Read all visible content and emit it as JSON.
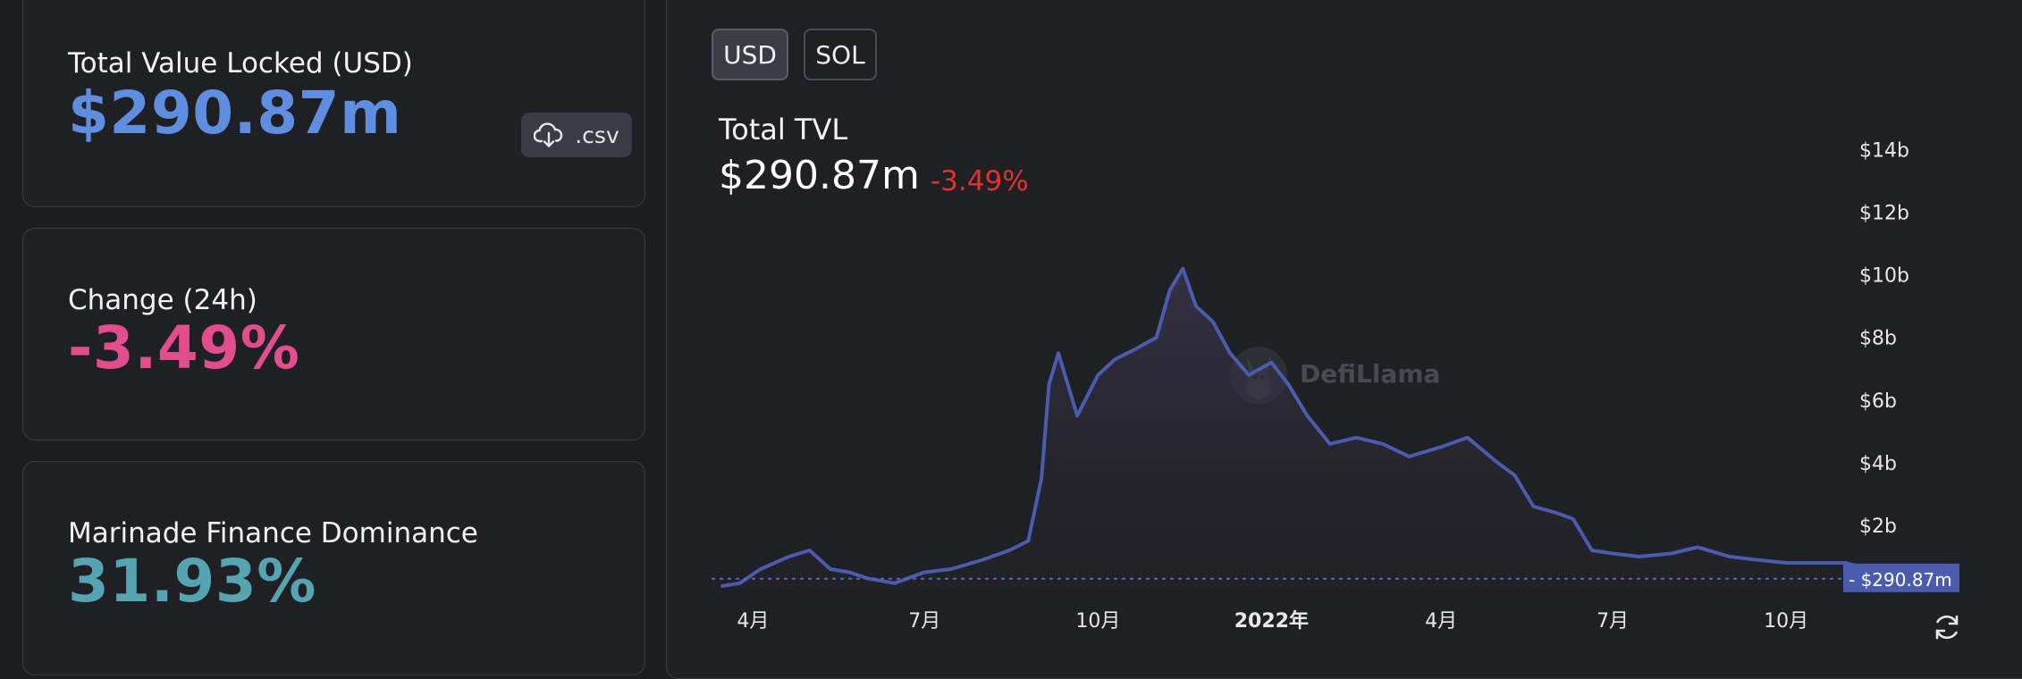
{
  "stats": {
    "tvl": {
      "label": "Total Value Locked (USD)",
      "value": "$290.87m"
    },
    "change": {
      "label": "Change (24h)",
      "value": "-3.49%"
    },
    "dominance": {
      "label": "Marinade Finance Dominance",
      "value": "31.93%"
    },
    "csv_label": ".csv"
  },
  "chart": {
    "toggles": [
      "USD",
      "SOL"
    ],
    "active_toggle": "USD",
    "title": "Total TVL",
    "value": "$290.87m",
    "change": "-3.49%",
    "watermark": "DefiLlama",
    "current_label": "$290.87m"
  },
  "colors": {
    "line": "#4b5cae",
    "tvl_value": "#5f8de0",
    "change_value": "#e24d8d",
    "dominance_value": "#56a3b1",
    "negative": "#e0322f"
  },
  "chart_data": {
    "type": "area",
    "series": [
      {
        "x": [
          "2021-03-15",
          "2021-03-25",
          "2021-04-05",
          "2021-04-20",
          "2021-05-01",
          "2021-05-12",
          "2021-05-22",
          "2021-06-01",
          "2021-06-15",
          "2021-07-01",
          "2021-07-15",
          "2021-08-01",
          "2021-08-15",
          "2021-08-25",
          "2021-09-01",
          "2021-09-05",
          "2021-09-10",
          "2021-09-20",
          "2021-10-01",
          "2021-10-10",
          "2021-10-20",
          "2021-11-01",
          "2021-11-08",
          "2021-11-15",
          "2021-11-22",
          "2021-12-01",
          "2021-12-10",
          "2021-12-20",
          "2022-01-01",
          "2022-01-10",
          "2022-01-20",
          "2022-02-01",
          "2022-02-15",
          "2022-03-01",
          "2022-03-15",
          "2022-04-01",
          "2022-04-15",
          "2022-05-01",
          "2022-05-10",
          "2022-05-20",
          "2022-06-01",
          "2022-06-10",
          "2022-06-20",
          "2022-07-01",
          "2022-07-15",
          "2022-08-01",
          "2022-08-15",
          "2022-09-01",
          "2022-09-15",
          "2022-10-01",
          "2022-10-20",
          "2022-11-01",
          "2022-11-08",
          "2022-11-15",
          "2022-11-25",
          "2022-12-05"
        ],
        "y": [
          0.05,
          0.15,
          0.6,
          1.0,
          1.2,
          0.6,
          0.5,
          0.3,
          0.15,
          0.5,
          0.6,
          0.9,
          1.2,
          1.5,
          3.5,
          6.5,
          7.5,
          5.5,
          6.8,
          7.3,
          7.6,
          8.0,
          9.5,
          10.2,
          9.0,
          8.5,
          7.5,
          6.8,
          7.2,
          6.5,
          5.5,
          4.6,
          4.8,
          4.6,
          4.2,
          4.5,
          4.8,
          4.0,
          3.6,
          2.6,
          2.4,
          2.2,
          1.2,
          1.1,
          1.0,
          1.1,
          1.3,
          1.0,
          0.9,
          0.8,
          0.8,
          0.8,
          0.7,
          0.35,
          0.35,
          0.29
        ]
      }
    ],
    "yticks": [
      "$2b",
      "$4b",
      "$6b",
      "$8b",
      "$10b",
      "$12b",
      "$14b"
    ],
    "ytick_values": [
      2,
      4,
      6,
      8,
      10,
      12,
      14
    ],
    "xticks": [
      "4月",
      "7月",
      "10月",
      "2022年",
      "4月",
      "7月",
      "10月"
    ],
    "xtick_dates": [
      "2021-04-01",
      "2021-07-01",
      "2021-10-01",
      "2022-01-01",
      "2022-04-01",
      "2022-07-01",
      "2022-10-01"
    ],
    "ylim": [
      0,
      14.5
    ],
    "xlim": [
      "2021-03-10",
      "2022-12-31"
    ],
    "current_value": 0.29087,
    "grid": false
  }
}
